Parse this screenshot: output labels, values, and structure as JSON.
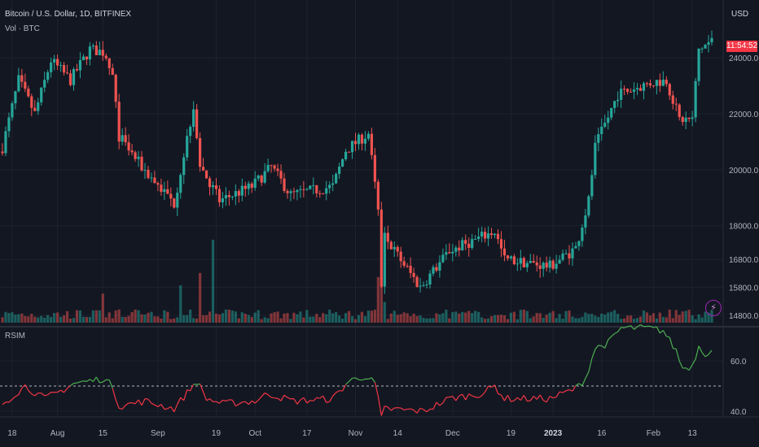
{
  "header": {
    "title": "Bitcoin / U.S. Dollar, 1D, BITFINEX",
    "volume_label": "Vol · BTC",
    "rsi_label": "RSIM",
    "currency": "USD",
    "countdown": "11:54:52"
  },
  "icons": {
    "alert": "lightning-bolt-icon"
  },
  "colors": {
    "background": "#131722",
    "up": "#26a69a",
    "down": "#ef5350",
    "rsi_up": "#4caf50",
    "rsi_down": "#f23645",
    "grid": "#1e222d"
  },
  "chart_data": [
    {
      "type": "candlestick",
      "title": "Bitcoin / U.S. Dollar, 1D, BITFINEX",
      "x_range": [
        "2022-07-15",
        "2023-02-19"
      ],
      "ylim": [
        14800,
        25100
      ],
      "y_ticks": [
        24000.0,
        22000.0,
        20000.0,
        18000.0,
        16800.0,
        15800.0,
        14800.0
      ],
      "y_tick_labels": [
        "24000.0",
        "22000.0",
        "20000.0",
        "18000.0",
        "16800.0",
        "15800.0",
        "14800.0"
      ],
      "last_price_label": "11:54:52",
      "close_anchors": [
        {
          "date": "2022-07-15",
          "close": 20800
        },
        {
          "date": "2022-07-20",
          "close": 23200
        },
        {
          "date": "2022-07-25",
          "close": 22000
        },
        {
          "date": "2022-07-30",
          "close": 23900
        },
        {
          "date": "2022-08-05",
          "close": 23200
        },
        {
          "date": "2022-08-11",
          "close": 24300
        },
        {
          "date": "2022-08-15",
          "close": 24200
        },
        {
          "date": "2022-08-18",
          "close": 23300
        },
        {
          "date": "2022-08-20",
          "close": 21200
        },
        {
          "date": "2022-08-27",
          "close": 20100
        },
        {
          "date": "2022-09-06",
          "close": 18800
        },
        {
          "date": "2022-09-12",
          "close": 22300
        },
        {
          "date": "2022-09-14",
          "close": 20200
        },
        {
          "date": "2022-09-20",
          "close": 18900
        },
        {
          "date": "2022-09-30",
          "close": 19400
        },
        {
          "date": "2022-10-06",
          "close": 20100
        },
        {
          "date": "2022-10-12",
          "close": 19100
        },
        {
          "date": "2022-10-25",
          "close": 19400
        },
        {
          "date": "2022-10-29",
          "close": 20700
        },
        {
          "date": "2022-11-05",
          "close": 21300
        },
        {
          "date": "2022-11-08",
          "close": 18500
        },
        {
          "date": "2022-11-09",
          "close": 15900
        },
        {
          "date": "2022-11-10",
          "close": 17600
        },
        {
          "date": "2022-11-21",
          "close": 15800
        },
        {
          "date": "2022-11-30",
          "close": 17100
        },
        {
          "date": "2022-12-14",
          "close": 17800
        },
        {
          "date": "2022-12-17",
          "close": 16800
        },
        {
          "date": "2022-12-31",
          "close": 16550
        },
        {
          "date": "2023-01-08",
          "close": 17200
        },
        {
          "date": "2023-01-12",
          "close": 18900
        },
        {
          "date": "2023-01-14",
          "close": 20800
        },
        {
          "date": "2023-01-21",
          "close": 22700
        },
        {
          "date": "2023-01-31",
          "close": 23100
        },
        {
          "date": "2023-02-05",
          "close": 23200
        },
        {
          "date": "2023-02-09",
          "close": 21800
        },
        {
          "date": "2023-02-13",
          "close": 21800
        },
        {
          "date": "2023-02-15",
          "close": 24300
        },
        {
          "date": "2023-02-19",
          "close": 24600
        }
      ],
      "volume_spikes": [
        {
          "date": "2022-08-15",
          "volume": 0.35
        },
        {
          "date": "2022-09-08",
          "volume": 0.45
        },
        {
          "date": "2022-09-14",
          "volume": 0.6
        },
        {
          "date": "2022-09-18",
          "volume": 1.0
        },
        {
          "date": "2022-11-08",
          "volume": 0.55
        },
        {
          "date": "2022-11-09",
          "volume": 0.56
        },
        {
          "date": "2022-11-10",
          "volume": 0.25
        }
      ],
      "x_axis_labels": [
        {
          "date": "2022-07-18",
          "label": "18",
          "bold": false
        },
        {
          "date": "2022-08-01",
          "label": "Aug",
          "bold": false
        },
        {
          "date": "2022-08-15",
          "label": "15",
          "bold": false
        },
        {
          "date": "2022-09-01",
          "label": "Sep",
          "bold": false
        },
        {
          "date": "2022-09-19",
          "label": "19",
          "bold": false
        },
        {
          "date": "2022-10-01",
          "label": "Oct",
          "bold": false
        },
        {
          "date": "2022-10-17",
          "label": "17",
          "bold": false
        },
        {
          "date": "2022-11-01",
          "label": "Nov",
          "bold": false
        },
        {
          "date": "2022-11-14",
          "label": "14",
          "bold": false
        },
        {
          "date": "2022-12-01",
          "label": "Dec",
          "bold": false
        },
        {
          "date": "2022-12-19",
          "label": "19",
          "bold": false
        },
        {
          "date": "2023-01-01",
          "label": "2023",
          "bold": true
        },
        {
          "date": "2023-01-16",
          "label": "16",
          "bold": false
        },
        {
          "date": "2023-02-01",
          "label": "Feb",
          "bold": false
        },
        {
          "date": "2023-02-13",
          "label": "13",
          "bold": false
        }
      ]
    },
    {
      "type": "line",
      "title": "RSIM",
      "ylim": [
        30,
        78
      ],
      "y_ticks": [
        60.0,
        40.0
      ],
      "y_tick_labels": [
        "60.0",
        "40.0"
      ],
      "reference_line": 50,
      "series": [
        {
          "anchors": [
            {
              "date": "2022-07-15",
              "value": 43
            },
            {
              "date": "2022-07-22",
              "value": 50
            },
            {
              "date": "2022-07-28",
              "value": 45
            },
            {
              "date": "2022-08-02",
              "value": 48
            },
            {
              "date": "2022-08-06",
              "value": 51
            },
            {
              "date": "2022-08-11",
              "value": 52
            },
            {
              "date": "2022-08-15",
              "value": 53
            },
            {
              "date": "2022-08-18",
              "value": 50
            },
            {
              "date": "2022-08-20",
              "value": 42
            },
            {
              "date": "2022-08-28",
              "value": 44
            },
            {
              "date": "2022-09-06",
              "value": 41
            },
            {
              "date": "2022-09-13",
              "value": 52
            },
            {
              "date": "2022-09-16",
              "value": 45
            },
            {
              "date": "2022-09-21",
              "value": 43
            },
            {
              "date": "2022-10-01",
              "value": 44
            },
            {
              "date": "2022-10-05",
              "value": 47
            },
            {
              "date": "2022-10-13",
              "value": 44
            },
            {
              "date": "2022-10-25",
              "value": 45
            },
            {
              "date": "2022-10-30",
              "value": 52
            },
            {
              "date": "2022-11-04",
              "value": 54
            },
            {
              "date": "2022-11-07",
              "value": 51
            },
            {
              "date": "2022-11-08",
              "value": 45
            },
            {
              "date": "2022-11-09",
              "value": 37
            },
            {
              "date": "2022-11-10",
              "value": 41
            },
            {
              "date": "2022-11-22",
              "value": 40
            },
            {
              "date": "2022-11-30",
              "value": 45
            },
            {
              "date": "2022-12-10",
              "value": 47
            },
            {
              "date": "2022-12-14",
              "value": 50
            },
            {
              "date": "2022-12-17",
              "value": 45
            },
            {
              "date": "2022-12-31",
              "value": 45
            },
            {
              "date": "2023-01-08",
              "value": 49
            },
            {
              "date": "2023-01-11",
              "value": 53
            },
            {
              "date": "2023-01-14",
              "value": 65
            },
            {
              "date": "2023-01-18",
              "value": 67
            },
            {
              "date": "2023-01-22",
              "value": 73
            },
            {
              "date": "2023-01-30",
              "value": 73
            },
            {
              "date": "2023-02-04",
              "value": 72
            },
            {
              "date": "2023-02-08",
              "value": 64
            },
            {
              "date": "2023-02-10",
              "value": 57
            },
            {
              "date": "2023-02-13",
              "value": 58
            },
            {
              "date": "2023-02-15",
              "value": 66
            },
            {
              "date": "2023-02-17",
              "value": 63
            },
            {
              "date": "2023-02-19",
              "value": 64
            }
          ]
        }
      ]
    }
  ]
}
